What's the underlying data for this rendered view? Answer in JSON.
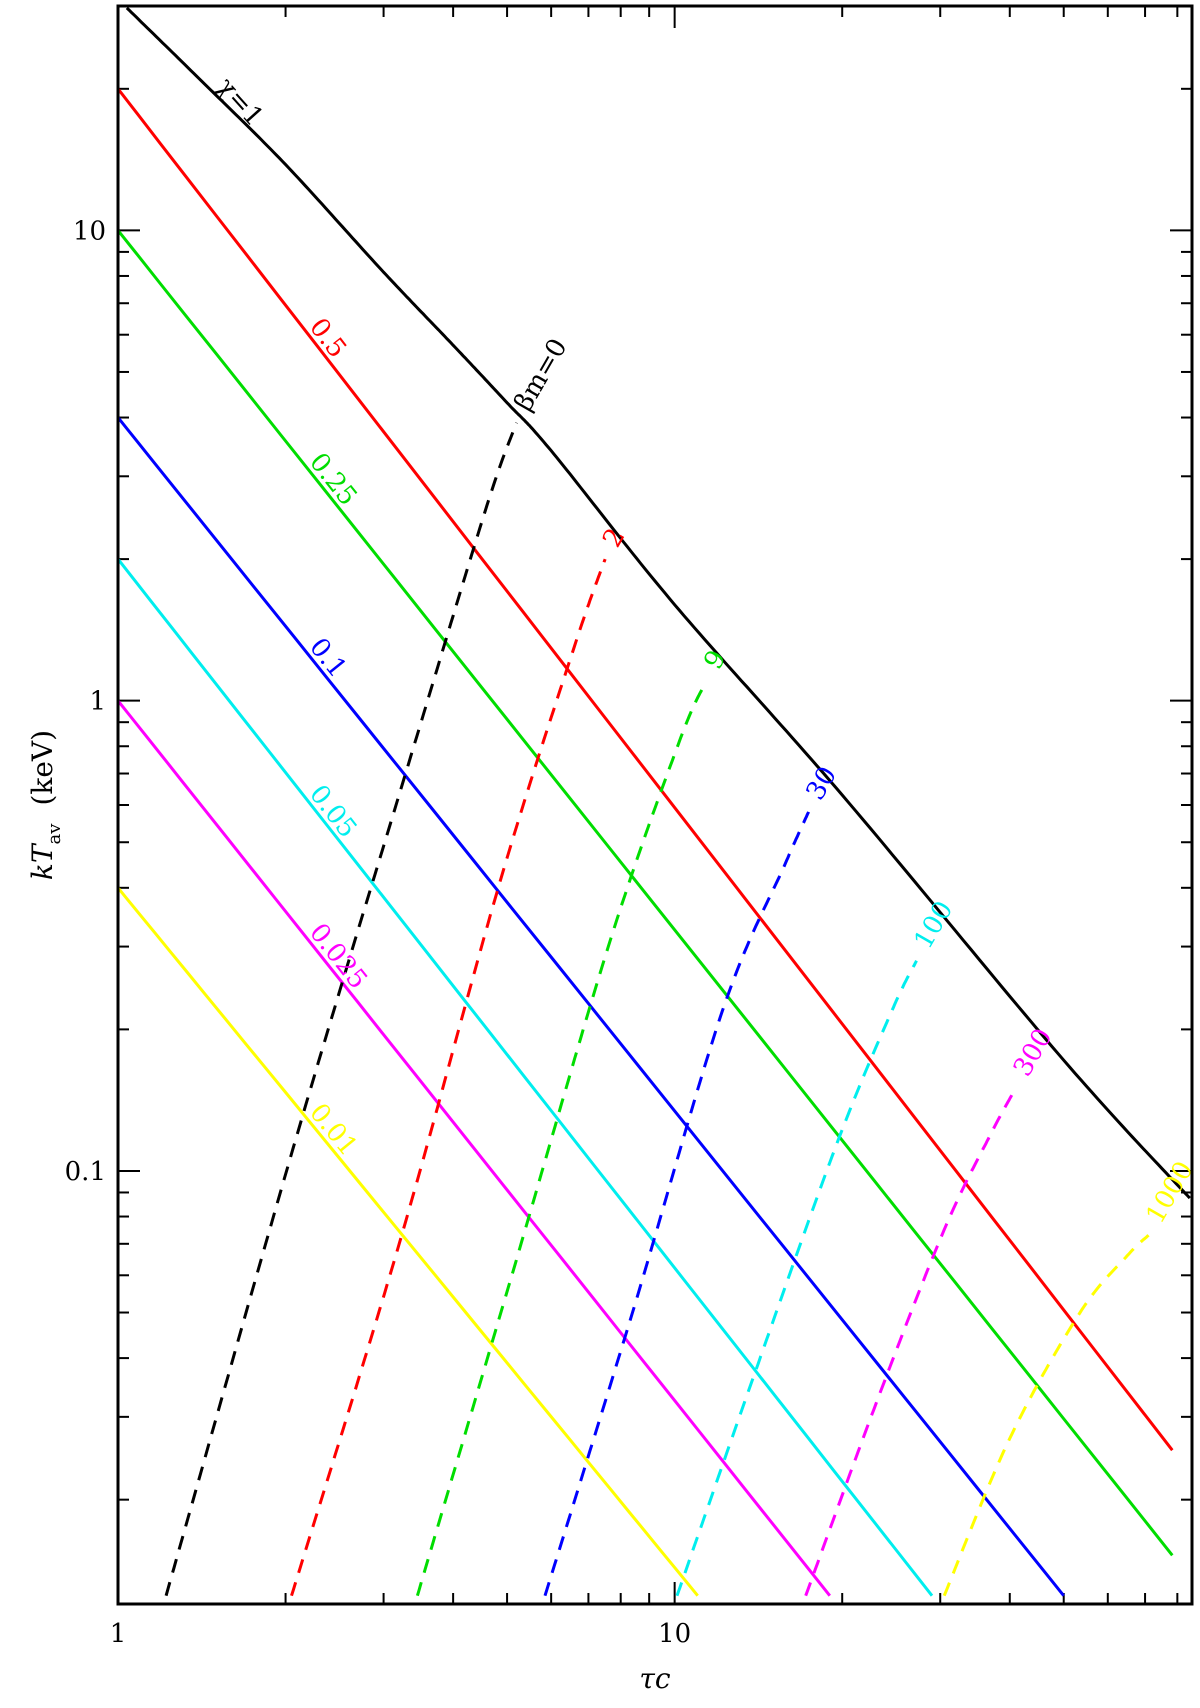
{
  "chart_data": {
    "type": "line",
    "title": "",
    "xlabel": "τc",
    "ylabel": {
      "main": "kT",
      "sub": "av",
      "unit": "(keV)"
    },
    "xscale": "log",
    "yscale": "log",
    "xlim": [
      1,
      85
    ],
    "ylim": [
      0.012,
      30
    ],
    "x_ticklabels": [
      {
        "value": 1,
        "label": "1"
      },
      {
        "value": 10,
        "label": "10"
      }
    ],
    "y_ticklabels": [
      {
        "value": 0.1,
        "label": "0.1"
      },
      {
        "value": 1,
        "label": "1"
      },
      {
        "value": 10,
        "label": "10"
      }
    ],
    "grid": false,
    "legend": "none",
    "solid_series": [
      {
        "label": "χ=1",
        "color": "#000000",
        "x": [
          1,
          1.4,
          2,
          3,
          4,
          5,
          6,
          10,
          20,
          50,
          85
        ],
        "y": [
          31,
          21,
          13.8,
          8.15,
          5.7,
          4.3,
          3.4,
          1.6,
          0.63,
          0.172,
          0.0865
        ]
      },
      {
        "label": "0.5",
        "color": "#ff0000",
        "x": [
          1,
          85
        ],
        "y": [
          20,
          0.0225
        ]
      },
      {
        "label": "0.25",
        "color": "#00dd00",
        "x": [
          1,
          85
        ],
        "y": [
          10,
          0.0135
        ]
      },
      {
        "label": "0.1",
        "color": "#0000ff",
        "x": [
          1,
          50
        ],
        "y": [
          4,
          0.0125
        ]
      },
      {
        "label": "0.05",
        "color": "#00eeee",
        "x": [
          1,
          29
        ],
        "y": [
          2,
          0.0125
        ]
      },
      {
        "label": "0.025",
        "color": "#ff00ff",
        "x": [
          1,
          19
        ],
        "y": [
          1,
          0.0125
        ]
      },
      {
        "label": "0.01",
        "color": "#ffff00",
        "x": [
          1,
          11
        ],
        "y": [
          0.4,
          0.0125
        ]
      }
    ],
    "dashed_series": [
      {
        "label": "βm=0",
        "color": "#000000",
        "x": [
          1.22,
          2.1,
          3.4,
          4.6,
          5.2
        ],
        "y": [
          0.0125,
          0.12,
          0.8,
          2.6,
          3.9
        ]
      },
      {
        "label": "2",
        "color": "#ff0000",
        "x": [
          2.05,
          3.2,
          4.85,
          6.6,
          7.5
        ],
        "y": [
          0.0125,
          0.07,
          0.41,
          1.3,
          2.0
        ]
      },
      {
        "label": "9",
        "color": "#00dd00",
        "x": [
          3.45,
          5.1,
          7.6,
          10.2,
          11.4
        ],
        "y": [
          0.0125,
          0.06,
          0.3,
          0.82,
          1.1
        ]
      },
      {
        "label": "30",
        "color": "#0000ff",
        "x": [
          5.85,
          8.4,
          12.2,
          15.8,
          17.4
        ],
        "y": [
          0.0125,
          0.05,
          0.22,
          0.45,
          0.58
        ]
      },
      {
        "label": "100",
        "color": "#00eeee",
        "x": [
          10.1,
          13.8,
          19.6,
          24.6,
          27.2
        ],
        "y": [
          0.0125,
          0.036,
          0.115,
          0.22,
          0.28
        ]
      },
      {
        "label": "300",
        "color": "#ff00ff",
        "x": [
          17.2,
          23.0,
          30.5,
          37.0,
          41.0
        ],
        "y": [
          0.0125,
          0.032,
          0.075,
          0.12,
          0.15
        ]
      },
      {
        "label": "1000",
        "color": "#ffff00",
        "x": [
          30.5,
          40.0,
          53.5,
          65.0,
          71.0
        ],
        "y": [
          0.0125,
          0.027,
          0.05,
          0.066,
          0.073
        ]
      }
    ]
  }
}
